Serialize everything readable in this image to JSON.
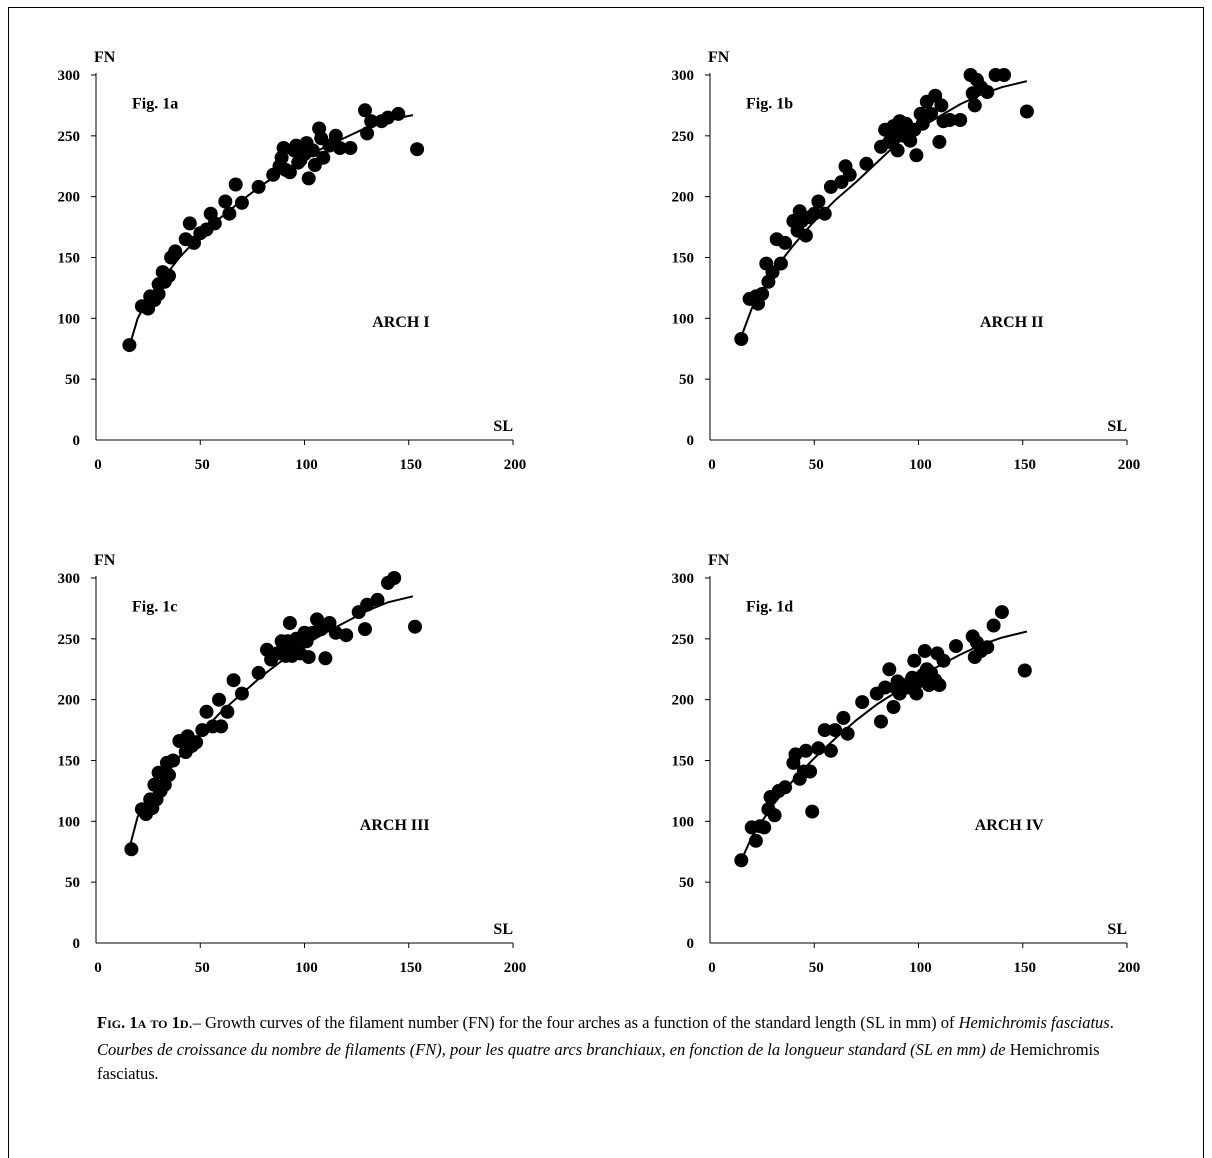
{
  "chart_data": [
    {
      "type": "scatter",
      "panel": "Fig. 1a",
      "annotation": "ARCH I",
      "ylabel": "FN",
      "xlabel": "SL",
      "xlim": [
        0,
        200
      ],
      "ylim": [
        0,
        300
      ],
      "xticks": [
        0,
        50,
        100,
        150,
        200
      ],
      "yticks": [
        0,
        50,
        100,
        150,
        200,
        250,
        300
      ],
      "curve": {
        "x_from": 16,
        "x_to": 152,
        "values": [
          [
            16,
            77
          ],
          [
            20,
            100
          ],
          [
            25,
            116
          ],
          [
            30,
            128
          ],
          [
            40,
            150
          ],
          [
            50,
            168
          ],
          [
            60,
            183
          ],
          [
            70,
            197
          ],
          [
            80,
            210
          ],
          [
            90,
            221
          ],
          [
            100,
            232
          ],
          [
            110,
            241
          ],
          [
            120,
            249
          ],
          [
            130,
            257
          ],
          [
            140,
            263
          ],
          [
            152,
            267
          ]
        ]
      },
      "points": [
        [
          16,
          78
        ],
        [
          22,
          110
        ],
        [
          25,
          108
        ],
        [
          26,
          118
        ],
        [
          28,
          115
        ],
        [
          30,
          120
        ],
        [
          30,
          128
        ],
        [
          32,
          138
        ],
        [
          33,
          130
        ],
        [
          35,
          135
        ],
        [
          36,
          150
        ],
        [
          38,
          155
        ],
        [
          43,
          165
        ],
        [
          45,
          178
        ],
        [
          47,
          162
        ],
        [
          50,
          170
        ],
        [
          53,
          173
        ],
        [
          55,
          186
        ],
        [
          57,
          178
        ],
        [
          62,
          196
        ],
        [
          64,
          186
        ],
        [
          67,
          210
        ],
        [
          70,
          195
        ],
        [
          78,
          208
        ],
        [
          85,
          218
        ],
        [
          88,
          225
        ],
        [
          89,
          232
        ],
        [
          90,
          240
        ],
        [
          91,
          222
        ],
        [
          93,
          220
        ],
        [
          95,
          238
        ],
        [
          96,
          242
        ],
        [
          97,
          228
        ],
        [
          98,
          230
        ],
        [
          100,
          235
        ],
        [
          101,
          244
        ],
        [
          102,
          215
        ],
        [
          104,
          238
        ],
        [
          105,
          226
        ],
        [
          107,
          256
        ],
        [
          108,
          248
        ],
        [
          109,
          232
        ],
        [
          112,
          242
        ],
        [
          115,
          250
        ],
        [
          117,
          240
        ],
        [
          122,
          240
        ],
        [
          129,
          271
        ],
        [
          130,
          252
        ],
        [
          132,
          262
        ],
        [
          137,
          262
        ],
        [
          140,
          265
        ],
        [
          145,
          268
        ],
        [
          154,
          239
        ]
      ]
    },
    {
      "type": "scatter",
      "panel": "Fig. 1b",
      "annotation": "ARCH II",
      "ylabel": "FN",
      "xlabel": "SL",
      "xlim": [
        0,
        200
      ],
      "ylim": [
        0,
        300
      ],
      "xticks": [
        0,
        50,
        100,
        150,
        200
      ],
      "yticks": [
        0,
        50,
        100,
        150,
        200,
        250,
        300
      ],
      "curve": {
        "x_from": 15,
        "x_to": 152,
        "values": [
          [
            15,
            85
          ],
          [
            20,
            108
          ],
          [
            25,
            122
          ],
          [
            30,
            138
          ],
          [
            40,
            160
          ],
          [
            50,
            180
          ],
          [
            60,
            197
          ],
          [
            70,
            212
          ],
          [
            80,
            228
          ],
          [
            90,
            244
          ],
          [
            100,
            256
          ],
          [
            110,
            266
          ],
          [
            120,
            276
          ],
          [
            130,
            284
          ],
          [
            140,
            290
          ],
          [
            152,
            295
          ]
        ]
      },
      "points": [
        [
          15,
          83
        ],
        [
          19,
          116
        ],
        [
          22,
          118
        ],
        [
          23,
          112
        ],
        [
          25,
          120
        ],
        [
          27,
          145
        ],
        [
          28,
          130
        ],
        [
          30,
          138
        ],
        [
          32,
          165
        ],
        [
          34,
          145
        ],
        [
          36,
          162
        ],
        [
          40,
          180
        ],
        [
          42,
          172
        ],
        [
          43,
          188
        ],
        [
          44,
          180
        ],
        [
          46,
          168
        ],
        [
          48,
          183
        ],
        [
          50,
          186
        ],
        [
          52,
          196
        ],
        [
          55,
          186
        ],
        [
          58,
          208
        ],
        [
          63,
          212
        ],
        [
          65,
          225
        ],
        [
          67,
          218
        ],
        [
          75,
          227
        ],
        [
          82,
          241
        ],
        [
          84,
          255
        ],
        [
          86,
          245
        ],
        [
          88,
          258
        ],
        [
          89,
          250
        ],
        [
          90,
          238
        ],
        [
          91,
          262
        ],
        [
          92,
          255
        ],
        [
          93,
          250
        ],
        [
          94,
          260
        ],
        [
          95,
          252
        ],
        [
          96,
          246
        ],
        [
          98,
          255
        ],
        [
          99,
          234
        ],
        [
          101,
          268
        ],
        [
          102,
          260
        ],
        [
          104,
          278
        ],
        [
          106,
          268
        ],
        [
          108,
          283
        ],
        [
          110,
          245
        ],
        [
          111,
          275
        ],
        [
          112,
          262
        ],
        [
          115,
          263
        ],
        [
          120,
          263
        ],
        [
          125,
          300
        ],
        [
          126,
          285
        ],
        [
          127,
          275
        ],
        [
          128,
          296
        ],
        [
          130,
          290
        ],
        [
          133,
          286
        ],
        [
          137,
          300
        ],
        [
          141,
          300
        ],
        [
          152,
          270
        ]
      ]
    },
    {
      "type": "scatter",
      "panel": "Fig. 1c",
      "annotation": "ARCH III",
      "ylabel": "FN",
      "xlabel": "SL",
      "xlim": [
        0,
        200
      ],
      "ylim": [
        0,
        300
      ],
      "xticks": [
        0,
        50,
        100,
        150,
        200
      ],
      "yticks": [
        0,
        50,
        100,
        150,
        200,
        250,
        300
      ],
      "curve": {
        "x_from": 16,
        "x_to": 152,
        "values": [
          [
            16,
            78
          ],
          [
            20,
            104
          ],
          [
            25,
            116
          ],
          [
            30,
            130
          ],
          [
            40,
            153
          ],
          [
            50,
            172
          ],
          [
            60,
            190
          ],
          [
            70,
            205
          ],
          [
            80,
            220
          ],
          [
            90,
            233
          ],
          [
            100,
            245
          ],
          [
            110,
            255
          ],
          [
            120,
            264
          ],
          [
            130,
            273
          ],
          [
            140,
            280
          ],
          [
            152,
            285
          ]
        ]
      },
      "points": [
        [
          17,
          77
        ],
        [
          22,
          110
        ],
        [
          24,
          106
        ],
        [
          26,
          118
        ],
        [
          27,
          111
        ],
        [
          28,
          130
        ],
        [
          29,
          118
        ],
        [
          30,
          140
        ],
        [
          31,
          125
        ],
        [
          33,
          130
        ],
        [
          34,
          148
        ],
        [
          35,
          138
        ],
        [
          37,
          150
        ],
        [
          40,
          166
        ],
        [
          43,
          157
        ],
        [
          44,
          170
        ],
        [
          46,
          162
        ],
        [
          48,
          165
        ],
        [
          51,
          175
        ],
        [
          53,
          190
        ],
        [
          56,
          178
        ],
        [
          59,
          200
        ],
        [
          60,
          178
        ],
        [
          63,
          190
        ],
        [
          66,
          216
        ],
        [
          70,
          205
        ],
        [
          78,
          222
        ],
        [
          82,
          241
        ],
        [
          84,
          233
        ],
        [
          87,
          238
        ],
        [
          89,
          248
        ],
        [
          90,
          240
        ],
        [
          91,
          236
        ],
        [
          92,
          248
        ],
        [
          93,
          263
        ],
        [
          94,
          236
        ],
        [
          95,
          244
        ],
        [
          96,
          250
        ],
        [
          98,
          238
        ],
        [
          100,
          255
        ],
        [
          101,
          248
        ],
        [
          102,
          235
        ],
        [
          104,
          255
        ],
        [
          106,
          266
        ],
        [
          108,
          258
        ],
        [
          110,
          234
        ],
        [
          112,
          263
        ],
        [
          115,
          255
        ],
        [
          120,
          253
        ],
        [
          126,
          272
        ],
        [
          129,
          258
        ],
        [
          130,
          278
        ],
        [
          135,
          282
        ],
        [
          140,
          296
        ],
        [
          143,
          300
        ],
        [
          153,
          260
        ]
      ]
    },
    {
      "type": "scatter",
      "panel": "Fig. 1d",
      "annotation": "ARCH IV",
      "ylabel": "FN",
      "xlabel": "SL",
      "xlim": [
        0,
        200
      ],
      "ylim": [
        0,
        300
      ],
      "xticks": [
        0,
        50,
        100,
        150,
        200
      ],
      "yticks": [
        0,
        50,
        100,
        150,
        200,
        250,
        300
      ],
      "curve": {
        "x_from": 15,
        "x_to": 152,
        "values": [
          [
            15,
            68
          ],
          [
            20,
            87
          ],
          [
            25,
            100
          ],
          [
            30,
            113
          ],
          [
            40,
            134
          ],
          [
            50,
            152
          ],
          [
            60,
            168
          ],
          [
            70,
            183
          ],
          [
            80,
            196
          ],
          [
            90,
            207
          ],
          [
            100,
            218
          ],
          [
            110,
            228
          ],
          [
            120,
            237
          ],
          [
            130,
            245
          ],
          [
            140,
            251
          ],
          [
            152,
            256
          ]
        ]
      },
      "points": [
        [
          15,
          68
        ],
        [
          20,
          95
        ],
        [
          22,
          84
        ],
        [
          24,
          96
        ],
        [
          26,
          95
        ],
        [
          28,
          110
        ],
        [
          29,
          120
        ],
        [
          31,
          105
        ],
        [
          33,
          125
        ],
        [
          36,
          128
        ],
        [
          40,
          148
        ],
        [
          41,
          155
        ],
        [
          43,
          135
        ],
        [
          45,
          141
        ],
        [
          46,
          158
        ],
        [
          48,
          141
        ],
        [
          49,
          108
        ],
        [
          52,
          160
        ],
        [
          55,
          175
        ],
        [
          58,
          158
        ],
        [
          60,
          175
        ],
        [
          64,
          185
        ],
        [
          66,
          172
        ],
        [
          73,
          198
        ],
        [
          80,
          205
        ],
        [
          82,
          182
        ],
        [
          84,
          210
        ],
        [
          86,
          225
        ],
        [
          88,
          194
        ],
        [
          89,
          210
        ],
        [
          90,
          215
        ],
        [
          91,
          205
        ],
        [
          93,
          212
        ],
        [
          95,
          210
        ],
        [
          97,
          218
        ],
        [
          98,
          232
        ],
        [
          99,
          205
        ],
        [
          100,
          215
        ],
        [
          102,
          220
        ],
        [
          103,
          240
        ],
        [
          104,
          225
        ],
        [
          105,
          212
        ],
        [
          106,
          222
        ],
        [
          108,
          216
        ],
        [
          109,
          238
        ],
        [
          110,
          212
        ],
        [
          112,
          232
        ],
        [
          118,
          244
        ],
        [
          126,
          252
        ],
        [
          127,
          235
        ],
        [
          128,
          247
        ],
        [
          130,
          240
        ],
        [
          133,
          243
        ],
        [
          136,
          261
        ],
        [
          140,
          272
        ],
        [
          151,
          224
        ]
      ]
    }
  ],
  "caption": {
    "fig_label": "Fig. 1a to 1d",
    "line1_rest": ".– Growth curves of the filament number (FN) for the four arches as a function of the standard length (SL in mm) of ",
    "line1_species": "Hemichromis fasciatus",
    "line1_end": ".",
    "line2_text": "Courbes de croissance du nombre de filaments (FN), pour les quatre arcs branchiaux, en fonction de la longueur standard (SL en mm) de ",
    "line2_species": "Hemichromis fasciatus",
    "line2_end": "."
  }
}
